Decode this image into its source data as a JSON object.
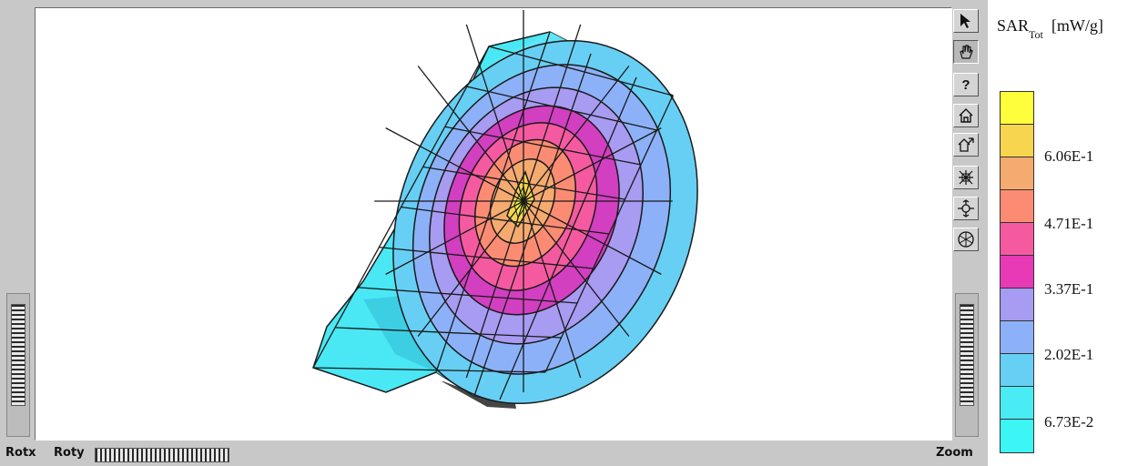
{
  "legend": {
    "title_main": "SAR",
    "title_sub": "Tot",
    "unit": "[mW/g]",
    "colors": [
      "#fefe3c",
      "#f7d54e",
      "#f5aa70",
      "#fb8c73",
      "#f55aa0",
      "#e83ab7",
      "#a79bf2",
      "#8cb1f8",
      "#67cff4",
      "#49ecf4",
      "#3cf6f6"
    ],
    "tick_labels": [
      "6.06E-1",
      "4.71E-1",
      "3.37E-1",
      "2.02E-1",
      "6.73E-2"
    ]
  },
  "controls": {
    "rotx_label": "Rotx",
    "roty_label": "Roty",
    "zoom_label": "Zoom"
  },
  "toolbar": {
    "help_label": "?"
  },
  "icons": [
    "pointer-arrow-icon",
    "hand-view-icon",
    "help-icon",
    "home-icon",
    "set-home-icon",
    "view-all-icon",
    "seek-icon",
    "projection-icon"
  ]
}
